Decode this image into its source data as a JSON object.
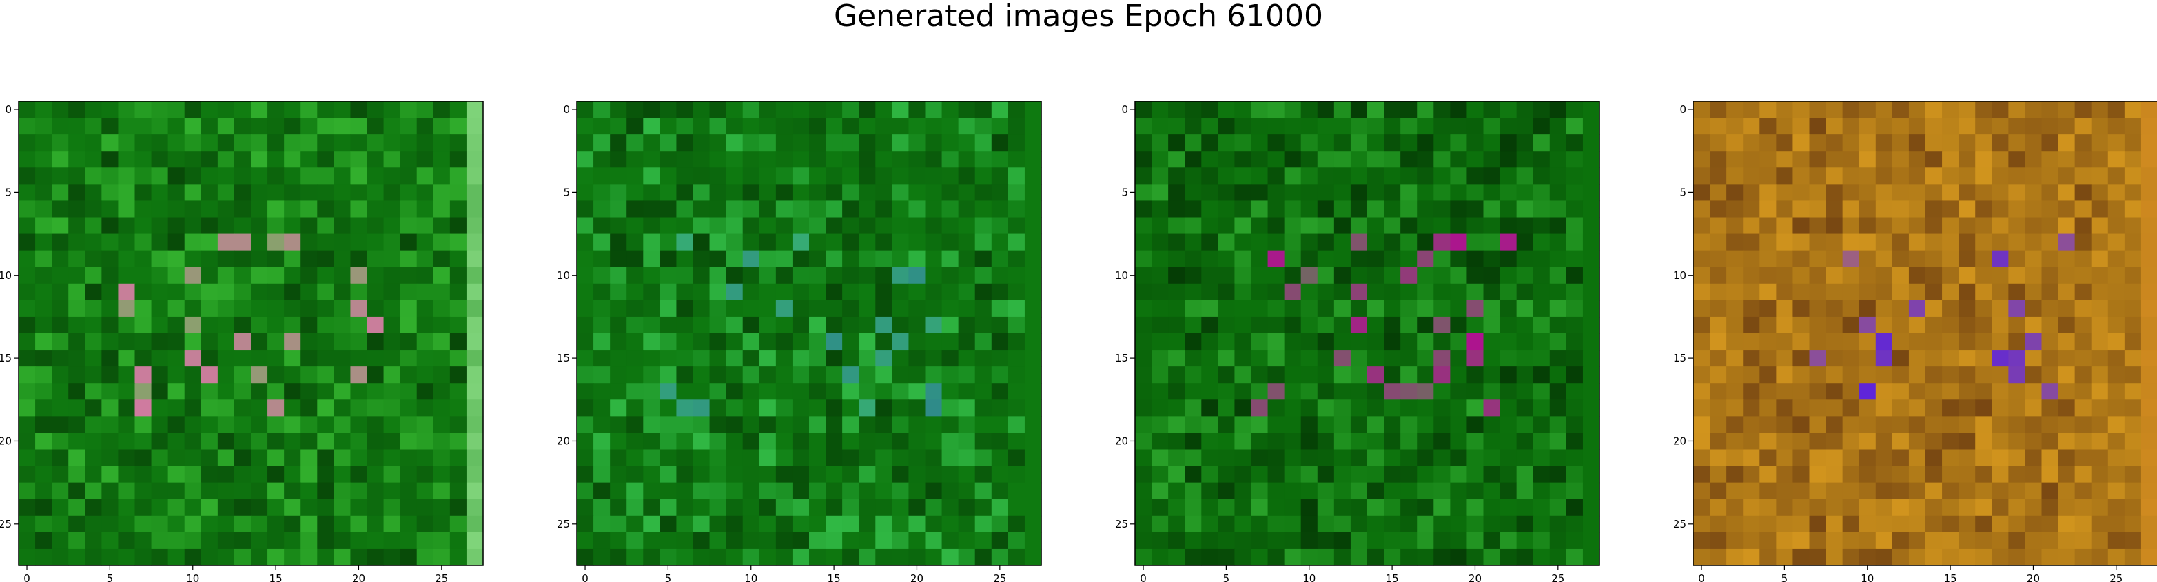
{
  "figure": {
    "title": "Generated images Epoch 61000"
  },
  "chart_data": [
    {
      "type": "heatmap",
      "title": "",
      "grid": false,
      "rows": 28,
      "cols": 28,
      "xlim": [
        -0.5,
        27.5
      ],
      "ylim": [
        27.5,
        -0.5
      ],
      "x_ticks": [
        0,
        5,
        10,
        15,
        20,
        25
      ],
      "y_ticks": [
        0,
        5,
        10,
        15,
        20,
        25
      ],
      "palette": {
        "base": "#0f7a10",
        "dark": "#063d06",
        "light": "#41c73a",
        "accent": "#d07aa0",
        "right_edge": "#7fd47a"
      },
      "seed": 11
    },
    {
      "type": "heatmap",
      "title": "",
      "grid": false,
      "rows": 28,
      "cols": 28,
      "xlim": [
        -0.5,
        27.5
      ],
      "ylim": [
        27.5,
        -0.5
      ],
      "x_ticks": [
        0,
        5,
        10,
        15,
        20,
        25
      ],
      "y_ticks": [
        0,
        5,
        10,
        15,
        20,
        25
      ],
      "palette": {
        "base": "#0e7a10",
        "dark": "#053a05",
        "light": "#3fd25a",
        "accent": "#2f8a8a",
        "right_edge": "#0e7a10"
      },
      "seed": 23
    },
    {
      "type": "heatmap",
      "title": "",
      "grid": false,
      "rows": 28,
      "cols": 28,
      "xlim": [
        -0.5,
        27.5
      ],
      "ylim": [
        27.5,
        -0.5
      ],
      "x_ticks": [
        0,
        5,
        10,
        15,
        20,
        25
      ],
      "y_ticks": [
        0,
        5,
        10,
        15,
        20,
        25
      ],
      "palette": {
        "base": "#0c720c",
        "dark": "#033003",
        "light": "#38b838",
        "accent": "#b01090",
        "right_edge": "#0c720c"
      },
      "seed": 37
    },
    {
      "type": "heatmap",
      "title": "",
      "grid": false,
      "rows": 28,
      "cols": 28,
      "xlim": [
        -0.5,
        27.5
      ],
      "ylim": [
        27.5,
        -0.5
      ],
      "x_ticks": [
        0,
        5,
        10,
        15,
        20,
        25
      ],
      "y_ticks": [
        0,
        5,
        10,
        15,
        20,
        25
      ],
      "palette": {
        "base": "#b07a18",
        "dark": "#6a3a10",
        "light": "#e0a020",
        "accent": "#5a20e0",
        "right_edge": "#d08a20"
      },
      "seed": 53
    }
  ]
}
